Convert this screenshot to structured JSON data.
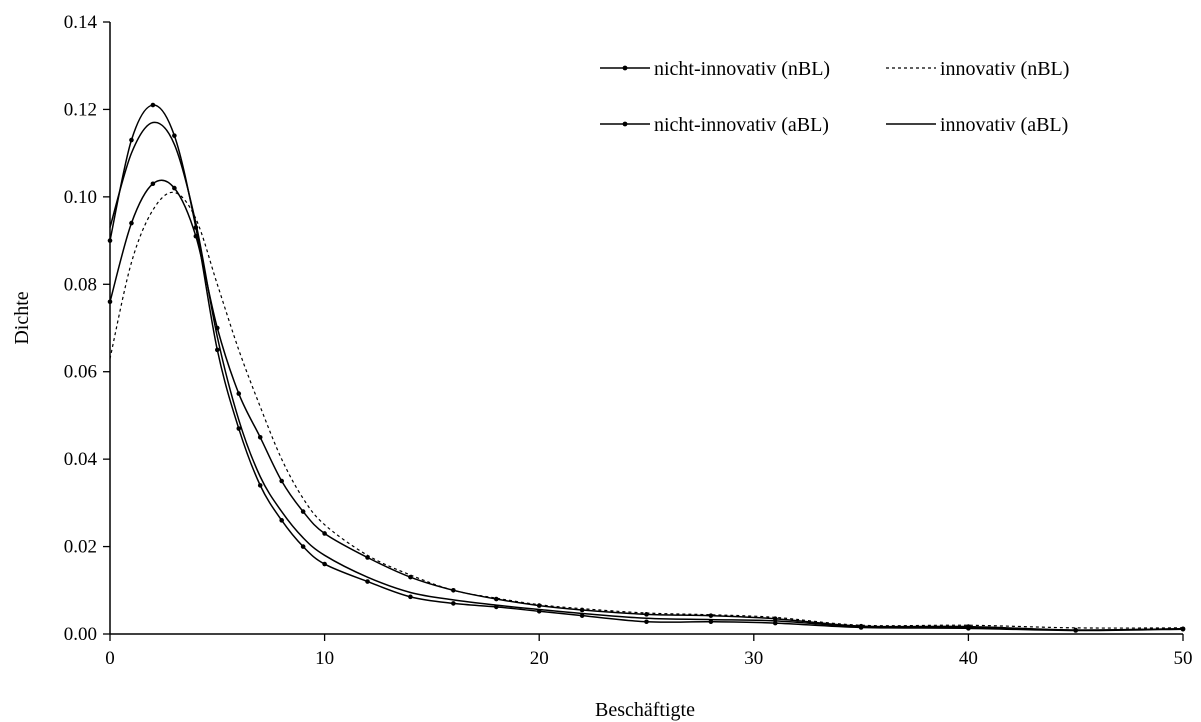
{
  "chart_data": {
    "type": "line",
    "title": "",
    "xlabel": "Beschäftigte",
    "ylabel": "Dichte",
    "xlim": [
      0,
      50
    ],
    "ylim": [
      0,
      0.14
    ],
    "xticks": [
      0,
      10,
      20,
      30,
      40,
      50
    ],
    "xtick_labels": [
      "0",
      "10",
      "20",
      "30",
      "40",
      "50"
    ],
    "yticks": [
      0,
      0.02,
      0.04,
      0.06,
      0.08,
      0.1,
      0.12,
      0.14
    ],
    "ytick_labels": [
      "0.00",
      "0.02",
      "0.04",
      "0.06",
      "0.08",
      "0.10",
      "0.12",
      "0.14"
    ],
    "grid": false,
    "legend_position": "top-right",
    "series": [
      {
        "name": "nicht-innovativ (nBL)",
        "style": "solid-markers",
        "color": "#000000",
        "x": [
          0,
          1,
          2,
          3,
          4,
          5,
          6,
          7,
          8,
          9,
          10,
          12,
          14,
          16,
          18,
          20,
          22,
          25,
          28,
          31,
          35,
          40,
          45,
          50
        ],
        "y": [
          0.076,
          0.094,
          0.103,
          0.102,
          0.091,
          0.07,
          0.055,
          0.045,
          0.035,
          0.028,
          0.023,
          0.0175,
          0.013,
          0.01,
          0.008,
          0.0065,
          0.0055,
          0.0045,
          0.0042,
          0.0035,
          0.0018,
          0.0017,
          0.0009,
          0.0012
        ]
      },
      {
        "name": "innovativ (nBL)",
        "style": "dashed",
        "color": "#000000",
        "x": [
          0,
          1,
          2,
          3,
          4,
          5,
          6,
          7,
          8,
          9,
          10,
          12,
          14,
          16,
          18,
          20,
          22,
          25,
          28,
          31,
          35,
          40,
          45,
          50
        ],
        "y": [
          0.063,
          0.085,
          0.097,
          0.101,
          0.095,
          0.08,
          0.065,
          0.052,
          0.04,
          0.031,
          0.025,
          0.018,
          0.0135,
          0.01,
          0.0082,
          0.0067,
          0.0058,
          0.0048,
          0.0044,
          0.0038,
          0.002,
          0.002,
          0.0014,
          0.0014
        ]
      },
      {
        "name": "nicht-innovativ (aBL)",
        "style": "solid-markers",
        "color": "#000000",
        "x": [
          0,
          1,
          2,
          3,
          4,
          5,
          6,
          7,
          8,
          9,
          10,
          12,
          14,
          16,
          18,
          20,
          22,
          25,
          28,
          31,
          35,
          40,
          45,
          50
        ],
        "y": [
          0.09,
          0.113,
          0.121,
          0.114,
          0.093,
          0.065,
          0.047,
          0.034,
          0.026,
          0.02,
          0.016,
          0.012,
          0.0085,
          0.007,
          0.0062,
          0.0052,
          0.0042,
          0.0028,
          0.0028,
          0.0025,
          0.0015,
          0.0013,
          0.0008,
          0.0011
        ]
      },
      {
        "name": "innovativ (aBL)",
        "style": "solid",
        "color": "#000000",
        "x": [
          0,
          1,
          2,
          3,
          4,
          5,
          6,
          7,
          8,
          9,
          10,
          12,
          14,
          16,
          18,
          20,
          22,
          25,
          28,
          31,
          35,
          40,
          45,
          50
        ],
        "y": [
          0.093,
          0.11,
          0.117,
          0.112,
          0.094,
          0.068,
          0.049,
          0.036,
          0.028,
          0.022,
          0.018,
          0.013,
          0.0095,
          0.0078,
          0.0066,
          0.0056,
          0.0047,
          0.0036,
          0.0033,
          0.003,
          0.0017,
          0.0015,
          0.0009,
          0.0012
        ]
      }
    ]
  }
}
